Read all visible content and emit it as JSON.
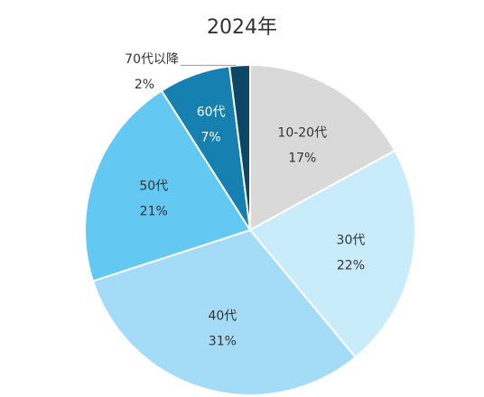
{
  "chart_data": {
    "type": "pie",
    "title": "2024年",
    "categories": [
      "10-20代",
      "30代",
      "40代",
      "50代",
      "60代",
      "70代以降"
    ],
    "values": [
      17,
      22,
      31,
      21,
      7,
      2
    ],
    "value_labels": [
      "17%",
      "22%",
      "31%",
      "21%",
      "7%",
      "2%"
    ],
    "colors": [
      "#d9d9d9",
      "#c9ecfb",
      "#a4dcf8",
      "#63c8f2",
      "#1680b0",
      "#0d4766"
    ],
    "label_colors": [
      "#333333",
      "#333333",
      "#333333",
      "#333333",
      "#ffffff",
      "#333333"
    ],
    "start_angle_deg": 0,
    "direction": "clockwise",
    "legend": "none"
  }
}
